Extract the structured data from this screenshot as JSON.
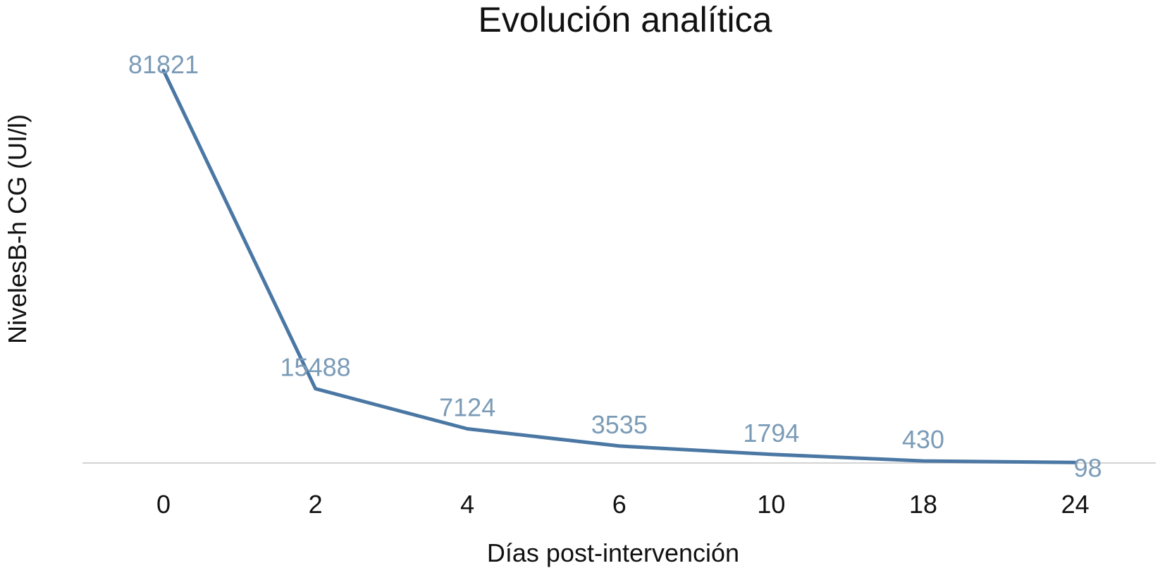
{
  "chart_data": {
    "type": "line",
    "title": "Evolución analítica",
    "xlabel": "Días post-intervención",
    "ylabel": "NivelesB-h CG (UI/l)",
    "categories": [
      "0",
      "2",
      "4",
      "6",
      "10",
      "18",
      "24"
    ],
    "series": [
      {
        "values": [
          81821,
          15488,
          7124,
          3535,
          1794,
          430,
          98
        ]
      }
    ],
    "data_labels": [
      "81821",
      "15488",
      "7124",
      "3535",
      "1794",
      "430",
      "98"
    ],
    "ylim": [
      0,
      81821
    ],
    "grid": false,
    "legend": "none",
    "colors": {
      "line": "#4a77a3",
      "labels": "#7b9bb7",
      "baseline": "#d3d3d3"
    }
  }
}
